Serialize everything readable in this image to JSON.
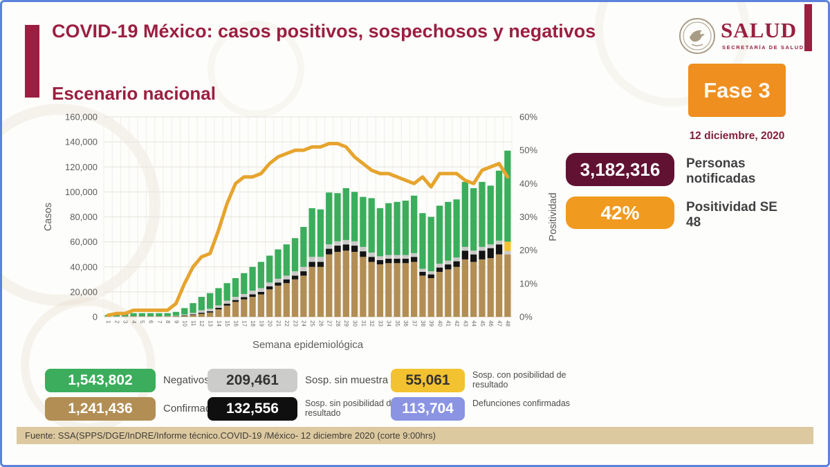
{
  "header": {
    "title": "COVID-19 México: casos positivos, sospechosos y negativos",
    "subtitle": "Escenario nacional",
    "logo_text": "SALUD",
    "logo_subtext": "SECRETARÍA DE SALUD"
  },
  "right_panel": {
    "phase_label": "Fase 3",
    "phase_color": "#ee8f1f",
    "date": "12 diciembre, 2020",
    "stats": [
      {
        "value": "3,182,316",
        "label": "Personas notificadas",
        "color": "#611232",
        "text_color": "#ffffff"
      },
      {
        "value": "42%",
        "label": "Positividad SE 48",
        "color": "#f09a1f",
        "text_color": "#ffffff"
      }
    ]
  },
  "chart_data": {
    "type": "bar",
    "subtype": "stacked-bars-with-line-overlay",
    "title": "Escenario nacional",
    "xlabel": "Semana epidemiológica",
    "ylabel_left": "Casos",
    "ylabel_right": "Positividad",
    "ylim_left": [
      0,
      160000
    ],
    "ytick_step_left": 20000,
    "ylim_right": [
      0,
      60
    ],
    "ytick_step_right": 10,
    "grid": true,
    "x": [
      1,
      2,
      3,
      4,
      5,
      6,
      7,
      8,
      9,
      10,
      11,
      12,
      13,
      14,
      15,
      16,
      17,
      18,
      19,
      20,
      21,
      22,
      23,
      24,
      25,
      26,
      27,
      28,
      29,
      30,
      31,
      32,
      33,
      34,
      35,
      36,
      37,
      38,
      39,
      40,
      41,
      42,
      43,
      44,
      45,
      46,
      47,
      48
    ],
    "series": [
      {
        "name": "Confirmados",
        "color": "#b28e55",
        "values": [
          100,
          100,
          200,
          300,
          300,
          300,
          300,
          400,
          500,
          800,
          1500,
          2500,
          3500,
          6000,
          9000,
          12000,
          14000,
          16000,
          18000,
          22000,
          25000,
          27000,
          30000,
          33000,
          40000,
          40000,
          50000,
          52000,
          53000,
          52000,
          48000,
          44000,
          42000,
          43000,
          43000,
          43000,
          44000,
          33000,
          31000,
          36000,
          38000,
          40000,
          46000,
          44000,
          46000,
          47000,
          50000,
          50000
        ]
      },
      {
        "name": "Sosp. sin posibilidad de resultado",
        "color": "#141414",
        "values": [
          50,
          50,
          50,
          50,
          50,
          50,
          50,
          50,
          100,
          300,
          500,
          800,
          1000,
          1200,
          1500,
          1500,
          1800,
          2000,
          2000,
          2500,
          2500,
          3000,
          3000,
          3500,
          4000,
          4000,
          4500,
          5000,
          5000,
          5000,
          4500,
          4000,
          3500,
          3500,
          3500,
          3500,
          4000,
          3000,
          3000,
          3500,
          4000,
          4500,
          7000,
          6000,
          7000,
          8000,
          8000,
          0
        ]
      },
      {
        "name": "Sosp. sin muestra",
        "color": "#c9c9c7",
        "values": [
          200,
          200,
          200,
          200,
          200,
          200,
          200,
          200,
          300,
          800,
          1200,
          2000,
          2000,
          2000,
          2500,
          2500,
          2500,
          3000,
          3000,
          3000,
          3000,
          3000,
          3500,
          3500,
          4000,
          4000,
          3500,
          3500,
          3500,
          3500,
          3500,
          3500,
          3000,
          3000,
          3000,
          3000,
          3000,
          2500,
          2500,
          3000,
          3000,
          3000,
          3000,
          3000,
          3000,
          3000,
          3000,
          2700
        ]
      },
      {
        "name": "Sosp. con posibilidad de resultado",
        "color": "#f2c230",
        "values": [
          0,
          0,
          0,
          0,
          0,
          0,
          0,
          0,
          0,
          0,
          0,
          0,
          0,
          0,
          0,
          0,
          0,
          0,
          0,
          0,
          0,
          0,
          0,
          0,
          0,
          0,
          0,
          0,
          0,
          0,
          0,
          0,
          0,
          0,
          0,
          0,
          0,
          0,
          0,
          0,
          0,
          0,
          0,
          0,
          0,
          0,
          0,
          7500
        ]
      },
      {
        "name": "Negativos",
        "color": "#3bad5c",
        "values": [
          1150,
          1650,
          2050,
          2450,
          2450,
          2450,
          2450,
          2350,
          3100,
          5100,
          7800,
          10700,
          12500,
          13800,
          14000,
          15000,
          16700,
          19000,
          21000,
          21500,
          23500,
          25000,
          26500,
          32000,
          39000,
          38000,
          41500,
          38500,
          41500,
          39500,
          40000,
          43500,
          38500,
          41500,
          42500,
          43500,
          46000,
          44500,
          43500,
          46500,
          47000,
          46500,
          52000,
          50000,
          52000,
          47000,
          56000,
          72800
        ]
      }
    ],
    "line": {
      "name": "Positividad (%)",
      "color": "#e6a42e",
      "values": [
        0.5,
        1,
        1,
        2,
        2,
        2,
        2,
        2,
        4,
        10,
        15,
        18,
        19,
        26,
        34,
        40,
        42,
        42,
        43,
        46,
        48,
        49,
        50,
        50,
        51,
        51,
        52,
        52,
        51,
        48,
        46,
        44,
        43,
        43,
        42,
        41,
        40,
        42,
        39,
        43,
        43,
        43,
        41,
        40,
        44,
        45,
        46,
        42
      ]
    },
    "legend_position": "bottom"
  },
  "legend": {
    "items": [
      {
        "value": "1,543,802",
        "label": "Negativos",
        "color": "#3bad5c",
        "text_color": "#ffffff"
      },
      {
        "value": "209,461",
        "label": "Sosp. sin muestra",
        "color": "#cccccb",
        "text_color": "#333333"
      },
      {
        "value": "55,061",
        "label": "Sosp. con posibilidad de resultado",
        "color": "#f2c230",
        "text_color": "#333333"
      },
      {
        "value": "1,241,436",
        "label": "Confirmados",
        "color": "#b28e55",
        "text_color": "#ffffff"
      },
      {
        "value": "132,556",
        "label": "Sosp. sin posibilidad de resultado",
        "color": "#0f0f0f",
        "text_color": "#ffffff"
      },
      {
        "value": "113,704",
        "label": "Defunciones confirmadas",
        "color": "#8a94e3",
        "text_color": "#ffffff"
      }
    ]
  },
  "footer": {
    "source": "Fuente: SSA(SPPS/DGE/InDRE/Informe técnico.COVID-19 /México- 12 diciembre 2020 (corte 9:00hrs)"
  }
}
